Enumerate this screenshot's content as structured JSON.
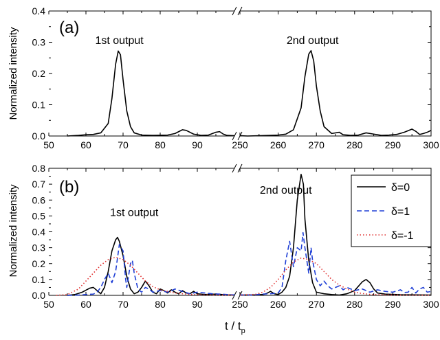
{
  "chart_data": [
    {
      "type": "line",
      "panel": "(a)",
      "ylabel": "Normalized intensity",
      "ylim": [
        0,
        0.4
      ],
      "yticks": [
        "0.0",
        "0.1",
        "0.2",
        "0.3",
        "0.4"
      ],
      "broken_x_axis": true,
      "x_segments": [
        {
          "range": [
            50,
            100
          ],
          "ticks": [
            "50",
            "60",
            "70",
            "80",
            "90"
          ]
        },
        {
          "range": [
            250,
            300
          ],
          "ticks": [
            "250",
            "260",
            "270",
            "280",
            "290",
            "300"
          ]
        }
      ],
      "annotations": [
        {
          "text": "1st output",
          "x": 69,
          "y": 0.295
        },
        {
          "text": "2nd output",
          "x": 269,
          "y": 0.295
        }
      ],
      "series": [
        {
          "color": "#000000",
          "dash": "solid",
          "points": [
            [
              55,
              0.0
            ],
            [
              58,
              0.002
            ],
            [
              60,
              0.004
            ],
            [
              62,
              0.005
            ],
            [
              64,
              0.01
            ],
            [
              66,
              0.04
            ],
            [
              67,
              0.12
            ],
            [
              68,
              0.23
            ],
            [
              68.7,
              0.272
            ],
            [
              69.3,
              0.26
            ],
            [
              70,
              0.18
            ],
            [
              71,
              0.08
            ],
            [
              72,
              0.03
            ],
            [
              73,
              0.01
            ],
            [
              75,
              0.003
            ],
            [
              78,
              0.002
            ],
            [
              82,
              0.003
            ],
            [
              84,
              0.008
            ],
            [
              86,
              0.02
            ],
            [
              87,
              0.018
            ],
            [
              89,
              0.006
            ],
            [
              91,
              0.002
            ],
            [
              93,
              0.003
            ],
            [
              95,
              0.012
            ],
            [
              96,
              0.014
            ],
            [
              97,
              0.006
            ],
            [
              98,
              0.002
            ],
            [
              100,
              0.001
            ],
            [
              250,
              0.001
            ],
            [
              252,
              0.0
            ],
            [
              255,
              0.001
            ],
            [
              258,
              0.002
            ],
            [
              260,
              0.003
            ],
            [
              262,
              0.006
            ],
            [
              264,
              0.02
            ],
            [
              266,
              0.09
            ],
            [
              267,
              0.19
            ],
            [
              268,
              0.262
            ],
            [
              268.6,
              0.273
            ],
            [
              269.3,
              0.24
            ],
            [
              270,
              0.16
            ],
            [
              271,
              0.08
            ],
            [
              272,
              0.03
            ],
            [
              274,
              0.008
            ],
            [
              276,
              0.012
            ],
            [
              277,
              0.004
            ],
            [
              279,
              0.002
            ],
            [
              281,
              0.003
            ],
            [
              283,
              0.01
            ],
            [
              285,
              0.006
            ],
            [
              287,
              0.002
            ],
            [
              289,
              0.003
            ],
            [
              291,
              0.005
            ],
            [
              293,
              0.012
            ],
            [
              295,
              0.022
            ],
            [
              296,
              0.015
            ],
            [
              297,
              0.005
            ],
            [
              298,
              0.008
            ],
            [
              299,
              0.012
            ],
            [
              300,
              0.018
            ]
          ]
        }
      ]
    },
    {
      "type": "line",
      "panel": "(b)",
      "ylabel": "Normalized intensity",
      "xlabel": "t / t",
      "xlabel_sub": "p",
      "ylim": [
        0,
        0.8
      ],
      "yticks": [
        "0.0",
        "0.1",
        "0.2",
        "0.3",
        "0.4",
        "0.5",
        "0.6",
        "0.7",
        "0.8"
      ],
      "broken_x_axis": true,
      "x_segments": [
        {
          "range": [
            50,
            100
          ],
          "ticks": [
            "50",
            "60",
            "70",
            "80",
            "90"
          ]
        },
        {
          "range": [
            250,
            300
          ],
          "ticks": [
            "250",
            "260",
            "270",
            "280",
            "290",
            "300"
          ]
        }
      ],
      "annotations": [
        {
          "text": "1st output",
          "x": 73,
          "y": 0.5
        },
        {
          "text": "2nd output",
          "x": 262,
          "y": 0.64
        }
      ],
      "legend": {
        "position": "top-right",
        "entries": [
          "δ=0",
          "δ=1",
          "δ=-1"
        ]
      },
      "series": [
        {
          "name": "δ=0",
          "color": "#000000",
          "dash": "solid",
          "points": [
            [
              55,
              0.0
            ],
            [
              57,
              0.005
            ],
            [
              59,
              0.02
            ],
            [
              61,
              0.045
            ],
            [
              62,
              0.05
            ],
            [
              63,
              0.03
            ],
            [
              64,
              0.01
            ],
            [
              65,
              0.05
            ],
            [
              66,
              0.15
            ],
            [
              67,
              0.28
            ],
            [
              68,
              0.35
            ],
            [
              68.5,
              0.365
            ],
            [
              69,
              0.34
            ],
            [
              70,
              0.25
            ],
            [
              71,
              0.12
            ],
            [
              72,
              0.04
            ],
            [
              73,
              0.01
            ],
            [
              74,
              0.02
            ],
            [
              75,
              0.05
            ],
            [
              76,
              0.09
            ],
            [
              77,
              0.06
            ],
            [
              78,
              0.02
            ],
            [
              79,
              0.01
            ],
            [
              80,
              0.04
            ],
            [
              81,
              0.03
            ],
            [
              82,
              0.015
            ],
            [
              83,
              0.035
            ],
            [
              84,
              0.02
            ],
            [
              85,
              0.01
            ],
            [
              86,
              0.03
            ],
            [
              87,
              0.015
            ],
            [
              88,
              0.01
            ],
            [
              89,
              0.025
            ],
            [
              90,
              0.01
            ],
            [
              92,
              0.005
            ],
            [
              95,
              0.008
            ],
            [
              98,
              0.003
            ],
            [
              100,
              0.002
            ],
            [
              250,
              0.002
            ],
            [
              254,
              0.003
            ],
            [
              256,
              0.005
            ],
            [
              257,
              0.012
            ],
            [
              258,
              0.025
            ],
            [
              259,
              0.01
            ],
            [
              260,
              0.005
            ],
            [
              261,
              0.02
            ],
            [
              262,
              0.05
            ],
            [
              263,
              0.12
            ],
            [
              264,
              0.3
            ],
            [
              265,
              0.6
            ],
            [
              266,
              0.762
            ],
            [
              266.6,
              0.7
            ],
            [
              267,
              0.48
            ],
            [
              268,
              0.22
            ],
            [
              269,
              0.08
            ],
            [
              270,
              0.02
            ],
            [
              272,
              0.01
            ],
            [
              274,
              0.005
            ],
            [
              276,
              0.002
            ],
            [
              278,
              0.01
            ],
            [
              280,
              0.03
            ],
            [
              282,
              0.085
            ],
            [
              283,
              0.1
            ],
            [
              284,
              0.08
            ],
            [
              285,
              0.04
            ],
            [
              286,
              0.015
            ],
            [
              288,
              0.008
            ],
            [
              292,
              0.004
            ],
            [
              296,
              0.003
            ],
            [
              300,
              0.002
            ]
          ]
        },
        {
          "name": "δ=1",
          "color": "#1f3fd6",
          "dash": "dash",
          "points": [
            [
              55,
              0.0
            ],
            [
              58,
              0.002
            ],
            [
              60,
              0.005
            ],
            [
              62,
              0.008
            ],
            [
              63,
              0.02
            ],
            [
              64,
              0.05
            ],
            [
              65,
              0.1
            ],
            [
              66,
              0.14
            ],
            [
              67,
              0.08
            ],
            [
              68,
              0.15
            ],
            [
              69,
              0.32
            ],
            [
              70,
              0.28
            ],
            [
              70.7,
              0.1
            ],
            [
              71,
              0.05
            ],
            [
              72,
              0.2
            ],
            [
              72.5,
              0.22
            ],
            [
              73,
              0.14
            ],
            [
              74,
              0.04
            ],
            [
              75,
              0.02
            ],
            [
              76,
              0.05
            ],
            [
              77,
              0.04
            ],
            [
              78,
              0.02
            ],
            [
              80,
              0.03
            ],
            [
              82,
              0.02
            ],
            [
              84,
              0.04
            ],
            [
              86,
              0.025
            ],
            [
              88,
              0.01
            ],
            [
              90,
              0.02
            ],
            [
              92,
              0.015
            ],
            [
              94,
              0.01
            ],
            [
              96,
              0.008
            ],
            [
              98,
              0.005
            ],
            [
              100,
              0.003
            ],
            [
              250,
              0.003
            ],
            [
              253,
              0.002
            ],
            [
              256,
              0.008
            ],
            [
              258,
              0.01
            ],
            [
              260,
              0.015
            ],
            [
              261,
              0.05
            ],
            [
              262,
              0.22
            ],
            [
              263,
              0.34
            ],
            [
              264,
              0.18
            ],
            [
              265,
              0.3
            ],
            [
              266,
              0.28
            ],
            [
              266.5,
              0.395
            ],
            [
              267,
              0.3
            ],
            [
              268,
              0.14
            ],
            [
              268.6,
              0.3
            ],
            [
              269,
              0.22
            ],
            [
              270,
              0.1
            ],
            [
              271,
              0.06
            ],
            [
              272,
              0.09
            ],
            [
              273,
              0.06
            ],
            [
              274,
              0.04
            ],
            [
              276,
              0.06
            ],
            [
              277,
              0.035
            ],
            [
              278,
              0.05
            ],
            [
              280,
              0.03
            ],
            [
              282,
              0.04
            ],
            [
              284,
              0.02
            ],
            [
              286,
              0.035
            ],
            [
              288,
              0.025
            ],
            [
              290,
              0.02
            ],
            [
              292,
              0.035
            ],
            [
              293,
              0.018
            ],
            [
              294,
              0.02
            ],
            [
              295,
              0.05
            ],
            [
              296,
              0.015
            ],
            [
              297,
              0.04
            ],
            [
              298,
              0.05
            ],
            [
              299,
              0.02
            ],
            [
              300,
              0.025
            ]
          ]
        },
        {
          "name": "δ=-1",
          "color": "#e03030",
          "dash": "dot",
          "points": [
            [
              52,
              0.0
            ],
            [
              55,
              0.005
            ],
            [
              58,
              0.04
            ],
            [
              60,
              0.09
            ],
            [
              62,
              0.14
            ],
            [
              64,
              0.19
            ],
            [
              66,
              0.225
            ],
            [
              68,
              0.24
            ],
            [
              70,
              0.225
            ],
            [
              72,
              0.19
            ],
            [
              74,
              0.14
            ],
            [
              76,
              0.09
            ],
            [
              78,
              0.055
            ],
            [
              80,
              0.035
            ],
            [
              82,
              0.025
            ],
            [
              84,
              0.015
            ],
            [
              86,
              0.01
            ],
            [
              88,
              0.006
            ],
            [
              92,
              0.003
            ],
            [
              96,
              0.002
            ],
            [
              100,
              0.002
            ],
            [
              250,
              0.002
            ],
            [
              254,
              0.006
            ],
            [
              256,
              0.02
            ],
            [
              258,
              0.05
            ],
            [
              260,
              0.1
            ],
            [
              262,
              0.16
            ],
            [
              264,
              0.21
            ],
            [
              266,
              0.235
            ],
            [
              268,
              0.225
            ],
            [
              270,
              0.2
            ],
            [
              272,
              0.15
            ],
            [
              274,
              0.1
            ],
            [
              276,
              0.065
            ],
            [
              278,
              0.04
            ],
            [
              280,
              0.02
            ],
            [
              282,
              0.012
            ],
            [
              284,
              0.006
            ],
            [
              288,
              0.003
            ],
            [
              292,
              0.002
            ],
            [
              300,
              0.001
            ]
          ]
        }
      ]
    }
  ]
}
